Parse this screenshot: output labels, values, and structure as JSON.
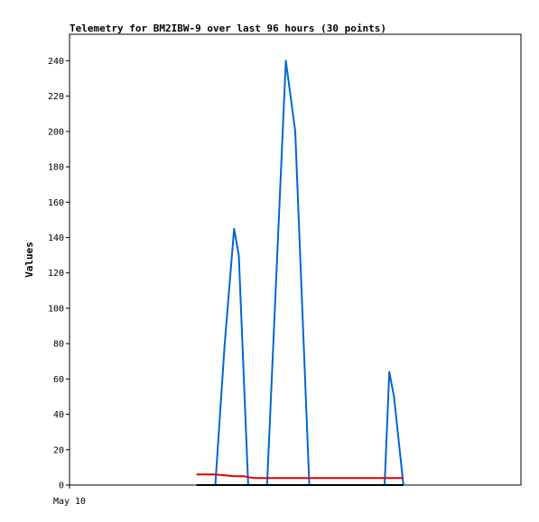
{
  "chart_data": {
    "type": "line",
    "title": "Telemetry for BM2IBW-9 over last 96 hours (30 points)",
    "xlabel": "",
    "ylabel": "Values",
    "x_tick_labels": [
      "May 10"
    ],
    "y_ticks": [
      0,
      20,
      40,
      60,
      80,
      100,
      120,
      140,
      160,
      180,
      200,
      220,
      240
    ],
    "xlim": [
      0,
      96
    ],
    "ylim": [
      0,
      255
    ],
    "grid": false,
    "legend": "none",
    "series": [
      {
        "color": "#0066cc",
        "x": [
          27,
          31,
          33,
          35,
          36,
          38,
          42,
          44,
          46,
          48,
          51,
          56,
          58,
          59,
          61,
          64,
          67,
          68,
          69,
          71
        ],
        "y": [
          0,
          0,
          80,
          145,
          130,
          0,
          0,
          120,
          240,
          200,
          0,
          0,
          0,
          0,
          0,
          0,
          0,
          64,
          50,
          0
        ]
      },
      {
        "color": "#dd0000",
        "x": [
          27,
          31,
          33,
          35,
          37,
          39,
          41,
          45,
          50,
          55,
          60,
          65,
          71
        ],
        "y": [
          6,
          6,
          5.5,
          5,
          5,
          4,
          4,
          4,
          4,
          4,
          4,
          4,
          4
        ]
      },
      {
        "color": "#000000",
        "x": [
          27,
          71
        ],
        "y": [
          0,
          0
        ]
      }
    ]
  }
}
